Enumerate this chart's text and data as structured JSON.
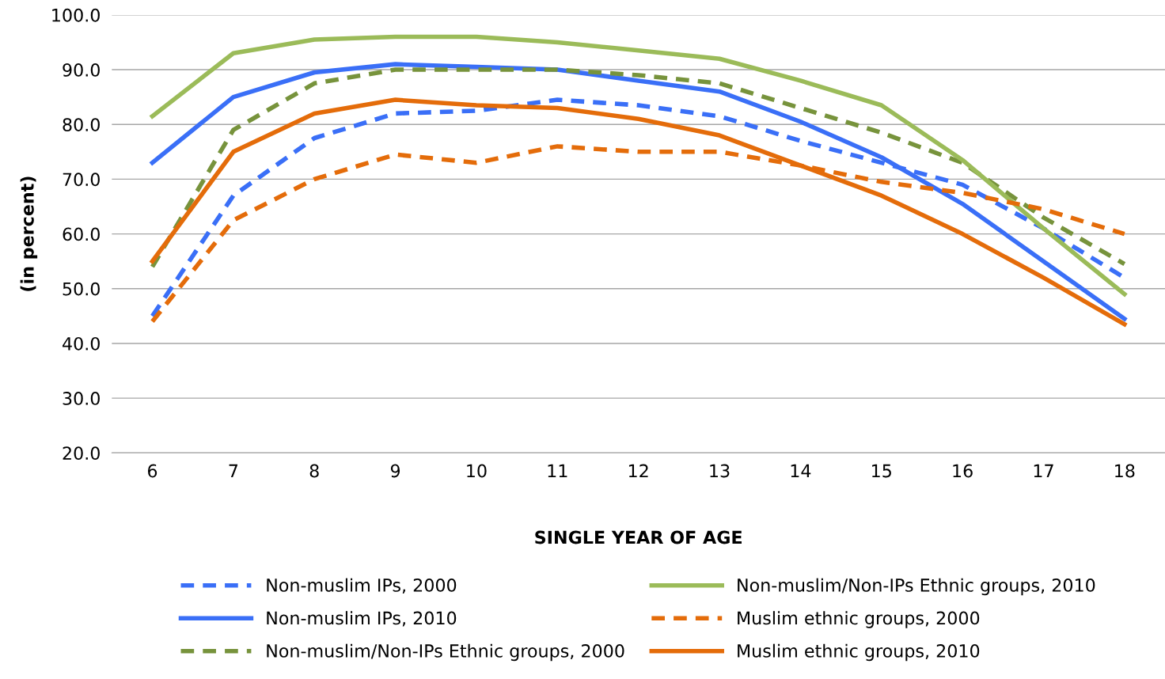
{
  "chart_data": {
    "type": "line",
    "xlabel": "SINGLE YEAR OF AGE",
    "ylabel": "(in percent)",
    "categories": [
      "6",
      "7",
      "8",
      "9",
      "10",
      "11",
      "12",
      "13",
      "14",
      "15",
      "16",
      "17",
      "18"
    ],
    "ylim": [
      20,
      100
    ],
    "yticks": [
      {
        "value": 20,
        "label": "20.0"
      },
      {
        "value": 30,
        "label": "30.0"
      },
      {
        "value": 40,
        "label": "40.0"
      },
      {
        "value": 50,
        "label": "50.0"
      },
      {
        "value": 60,
        "label": "60.0"
      },
      {
        "value": 70,
        "label": "70.0"
      },
      {
        "value": 80,
        "label": "80.0"
      },
      {
        "value": 90,
        "label": "90.0"
      },
      {
        "value": 100,
        "label": "100.0"
      }
    ],
    "grid": "y",
    "legend": "bottom",
    "marker": "none",
    "series": [
      {
        "name": "Non-muslim IPs, 2000",
        "color": "#3a6ff7",
        "line_style": "dashed",
        "values": [
          45,
          67,
          77.5,
          82,
          82.5,
          84.5,
          83.5,
          81.5,
          77,
          73,
          69,
          61,
          52
        ]
      },
      {
        "name": "Non-muslim IPs, 2010",
        "color": "#3a6ff7",
        "line_style": "solid",
        "values": [
          73,
          85,
          89.5,
          91,
          90.5,
          90,
          88,
          86,
          80.5,
          74,
          65.5,
          55,
          44.5
        ]
      },
      {
        "name": "Non-muslim/Non-IPs Ethnic groups, 2000",
        "color": "#77933c",
        "line_style": "dashed",
        "values": [
          54,
          79,
          87.5,
          90,
          90,
          90,
          89,
          87.5,
          83,
          78.5,
          73,
          63,
          54.5
        ]
      },
      {
        "name": "Non-muslim/Non-IPs Ethnic groups, 2010",
        "color": "#9bbb59",
        "line_style": "solid",
        "values": [
          81.5,
          93,
          95.5,
          96,
          96,
          95,
          93.5,
          92,
          88,
          83.5,
          73.5,
          61,
          49
        ]
      },
      {
        "name": "Muslim ethnic groups, 2000",
        "color": "#e46c0a",
        "line_style": "dashed",
        "values": [
          44,
          62.5,
          70,
          74.5,
          73,
          76,
          75,
          75,
          72.5,
          69.5,
          67.5,
          64.5,
          60
        ]
      },
      {
        "name": "Muslim ethnic groups, 2010",
        "color": "#e46c0a",
        "line_style": "solid",
        "values": [
          55,
          75,
          82,
          84.5,
          83.5,
          83,
          81,
          78,
          72.5,
          67,
          60,
          52,
          43.5
        ]
      }
    ]
  }
}
